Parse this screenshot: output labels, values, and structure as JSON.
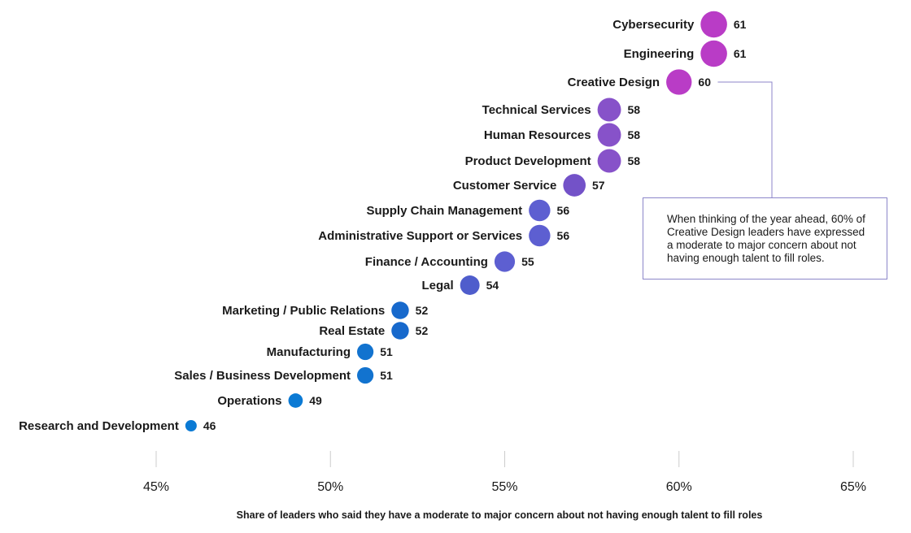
{
  "chart_data": {
    "type": "scatter",
    "xlabel": "Share of leaders who said they have a moderate to major concern about not having enough talent to fill roles",
    "xlim": [
      45,
      65
    ],
    "xticks": [
      45,
      50,
      55,
      60,
      65
    ],
    "xtick_labels": [
      "45%",
      "50%",
      "55%",
      "60%",
      "65%"
    ],
    "grid": false,
    "categories": [
      "Cybersecurity",
      "Engineering",
      "Creative Design",
      "Technical Services",
      "Human Resources",
      "Product Development",
      "Customer Service",
      "Supply Chain Management",
      "Administrative Support or Services",
      "Finance / Accounting",
      "Legal",
      "Marketing / Public Relations",
      "Real Estate",
      "Manufacturing",
      "Sales / Business Development",
      "Operations",
      "Research and Development"
    ],
    "values": [
      61,
      61,
      60,
      58,
      58,
      58,
      57,
      56,
      56,
      55,
      54,
      52,
      52,
      51,
      51,
      49,
      46
    ],
    "colors": [
      "#b93cc6",
      "#b93cc6",
      "#b93cc6",
      "#8752c9",
      "#8752c9",
      "#8752c9",
      "#7352c8",
      "#5d5fd1",
      "#5d5fd1",
      "#5d5fd1",
      "#4f5dcc",
      "#1769cc",
      "#1769cc",
      "#1273cf",
      "#1273cf",
      "#0b7ad4",
      "#0b7ad4"
    ],
    "annotation": {
      "category": "Creative Design",
      "text": "When thinking of the year ahead, 60% of Creative Design leaders have expressed a moderate to major concern about not having enough talent to fill roles."
    }
  }
}
